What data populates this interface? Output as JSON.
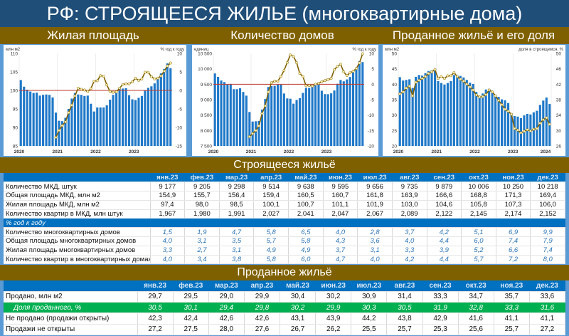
{
  "title": "РФ: СТРОЯЩЕЕСЯ ЖИЛЬЕ (многоквартирные дома)",
  "charts_band": [
    "Жилая площадь",
    "Количество домов",
    "Проданное жильё и его доля"
  ],
  "section1_title": "Строящееся жильё",
  "section2_title": "Проданное жильё",
  "months": [
    "янв.23",
    "фев.23",
    "мар.23",
    "апр.23",
    "май.23",
    "июн.23",
    "июл.23",
    "авг.23",
    "сен.23",
    "окт.23",
    "ноя.23",
    "дек.23"
  ],
  "table1": {
    "rows": [
      {
        "label": "Количество МКД, штук",
        "values": [
          "9 177",
          "9 205",
          "9 298",
          "9 514",
          "9 638",
          "9 595",
          "9 656",
          "9 735",
          "9 879",
          "10 006",
          "10 250",
          "10 218"
        ]
      },
      {
        "label": "Общая площадь МКД, млн м2",
        "values": [
          "154,9",
          "155,7",
          "156,4",
          "159,4",
          "160,5",
          "160,7",
          "161,8",
          "163,9",
          "166,6",
          "168,8",
          "171,3",
          "169,4"
        ]
      },
      {
        "label": "Жилая площадь МКД, млн м2",
        "values": [
          "97,4",
          "98,0",
          "98,5",
          "100,1",
          "100,7",
          "101,1",
          "101,9",
          "103,0",
          "104,6",
          "105,8",
          "107,3",
          "106,0"
        ]
      },
      {
        "label": "Количество квартир в МКД, млн штук",
        "values": [
          "1,967",
          "1,980",
          "1,991",
          "2,027",
          "2,041",
          "2,047",
          "2,067",
          "2,089",
          "2,122",
          "2,145",
          "2,174",
          "2,152"
        ]
      }
    ],
    "subheader": "% год к году",
    "pct_rows": [
      {
        "label": "Количество многоквартирных домов",
        "values": [
          "1,5",
          "1,9",
          "4,7",
          "5,8",
          "6,5",
          "4,0",
          "2,8",
          "3,7",
          "4,2",
          "5,1",
          "6,9",
          "9,9"
        ]
      },
      {
        "label": "Общая площадь многоквартирных домов",
        "values": [
          "4,0",
          "3,1",
          "3,5",
          "5,7",
          "5,8",
          "4,3",
          "3,6",
          "4,0",
          "4,4",
          "6,0",
          "7,4",
          "7,9"
        ]
      },
      {
        "label": "Жилая площадь многоквартирных домов",
        "values": [
          "3,3",
          "2,7",
          "3,1",
          "4,9",
          "4,9",
          "3,7",
          "3,1",
          "3,3",
          "3,9",
          "5,2",
          "6,6",
          "7,4"
        ]
      },
      {
        "label": "Количество квартир в многоквартирных домах",
        "values": [
          "4,0",
          "3,4",
          "3,8",
          "5,8",
          "6,0",
          "4,7",
          "4,0",
          "4,2",
          "4,4",
          "5,7",
          "7,2",
          "8,0"
        ]
      }
    ]
  },
  "table2": {
    "rows": [
      {
        "label": "Продано, млн м2",
        "values": [
          "29,7",
          "29,5",
          "29,0",
          "29,9",
          "30,4",
          "30,2",
          "30,9",
          "31,4",
          "33,3",
          "34,7",
          "35,7",
          "33,6"
        ],
        "style": ""
      },
      {
        "label": "Доля проданного, %",
        "values": [
          "30,5",
          "30,1",
          "29,4",
          "29,8",
          "30,2",
          "29,9",
          "30,3",
          "30,5",
          "31,9",
          "32,8",
          "33,3",
          "31,6"
        ],
        "style": "g"
      },
      {
        "label": "Не продано (продажи открыты)",
        "values": [
          "42,3",
          "42,4",
          "42,6",
          "42,6",
          "43,1",
          "43,9",
          "44,2",
          "43,8",
          "42,9",
          "41,6",
          "41,1",
          "41,1"
        ],
        "style": ""
      },
      {
        "label": "Продажи не открыты",
        "values": [
          "27,2",
          "27,5",
          "28,0",
          "27,6",
          "26,7",
          "26,2",
          "25,5",
          "25,7",
          "25,3",
          "25,6",
          "25,7",
          "27,2"
        ],
        "style": ""
      }
    ]
  },
  "colors": {
    "bar": "#1F78C8",
    "line": "#7F6000",
    "marker": "#FFF2B0",
    "ref": "#C0392B"
  },
  "chart_data": [
    {
      "type": "bar+line",
      "title": "Жилая площадь",
      "ylabel": "млн м2",
      "y2label": "% год к году",
      "ylim": [
        85,
        110
      ],
      "yticks": [
        85,
        90,
        95,
        100,
        105,
        110
      ],
      "y2lim": [
        -15,
        10
      ],
      "y2ticks": [
        -15,
        -10,
        -5,
        0,
        5,
        10
      ],
      "xlabels": [
        "2020",
        "2021",
        "2022",
        "2023"
      ],
      "ref_y2": 0,
      "bars": [
        102.8,
        101,
        100.2,
        99.7,
        99.3,
        99.4,
        98.6,
        98.8,
        98.9,
        98.8,
        98.1,
        94,
        91.8,
        91.7,
        92.6,
        95,
        97.8,
        99.3,
        98.9,
        98.8,
        98.5,
        98.6,
        96.4,
        94.3,
        95.4,
        95.4,
        95.4,
        96,
        97.5,
        98.8,
        99.6,
        100.7,
        100.5,
        100.6,
        98.7,
        97.6,
        97.4,
        98.0,
        98.5,
        100.1,
        100.7,
        101.1,
        101.9,
        103.0,
        104.6,
        105.8,
        107.3,
        106.0
      ],
      "line_start": 11,
      "line": [
        -12.7,
        -10.8,
        -9.5,
        -8.5,
        -6,
        -4,
        -1.5,
        0.6,
        0.3,
        0.1,
        -0.3,
        0.5,
        2.5,
        2.6,
        4,
        3.8,
        1.5,
        -0.3,
        -0.5,
        -0.4,
        0.6,
        1.6,
        1.8,
        1.8,
        2.3,
        3.3,
        2.7,
        3.1,
        4.9,
        4.9,
        3.7,
        3.1,
        3.3,
        3.9,
        5.2,
        6.6,
        7.4
      ]
    },
    {
      "type": "bar+line",
      "title": "Количество домов",
      "ylabel": "единиц",
      "y2label": "% год к году",
      "ylim": [
        7500,
        10500
      ],
      "yticks": [
        7500,
        8000,
        8500,
        9000,
        9500,
        10000,
        10500
      ],
      "ytick_labels": [
        "7 500",
        "8 000",
        "8 500",
        "9 000",
        "9 500",
        "10 000",
        "10 500"
      ],
      "y2lim": [
        -20,
        10
      ],
      "y2ticks": [
        -20,
        -15,
        -10,
        -5,
        0,
        5,
        10
      ],
      "xlabels": [
        "2020",
        "2021",
        "2022",
        "2023"
      ],
      "ref_y2": 0,
      "bars": [
        9850,
        9740,
        9620,
        9570,
        9490,
        9510,
        9340,
        9340,
        9370,
        9250,
        9130,
        8600,
        8290,
        8300,
        8310,
        8680,
        9020,
        9410,
        9440,
        9450,
        9490,
        9490,
        9200,
        9040,
        9030,
        8870,
        8990,
        9050,
        9220,
        9380,
        9380,
        9480,
        9530,
        9560,
        9290,
        9180,
        9177,
        9205,
        9298,
        9514,
        9638,
        9595,
        9656,
        9735,
        9879,
        10006,
        10250,
        10218
      ],
      "line_start": 11,
      "line": [
        -17,
        -16,
        -15,
        -13.5,
        -9.5,
        -7,
        -2.5,
        0.5,
        1,
        1,
        2.5,
        4.5,
        7,
        9.5,
        9,
        7,
        3.5,
        2.5,
        -0.5,
        -0.4,
        -0.6,
        0,
        0.3,
        0.8,
        1.2,
        1.5,
        1.9,
        4.7,
        5.8,
        6.5,
        4.0,
        2.8,
        3.7,
        4.2,
        5.1,
        6.9,
        9.9
      ]
    },
    {
      "type": "bar+line",
      "title": "Проданное жильё и его доля",
      "ylabel": "млн м2",
      "y2label": "доля в строящемся, %",
      "ylim": [
        20,
        50
      ],
      "yticks": [
        20,
        25,
        30,
        35,
        40,
        45,
        50
      ],
      "y2lim": [
        26,
        50
      ],
      "y2ticks": [
        26,
        30,
        34,
        38,
        42,
        46,
        50
      ],
      "xlabels": [
        "2020",
        "2021",
        "2022",
        "2023",
        "2024"
      ],
      "bars": [
        42.3,
        41.2,
        41.4,
        41.6,
        38.8,
        42.4,
        43,
        42.8,
        43.6,
        44.3,
        44.5,
        44.9,
        41,
        40.4,
        39.9,
        40.4,
        41,
        43,
        42.9,
        42.7,
        42.2,
        41.4,
        40.5,
        40.1,
        37.5,
        36,
        37,
        38.3,
        38.5,
        37.4,
        36.6,
        35.9,
        35.1,
        34.8,
        33.9,
        30.6,
        29.7,
        29.5,
        29.0,
        29.9,
        30.4,
        30.2,
        30.9,
        31.4,
        33.3,
        34.7,
        35.7,
        33.6
      ],
      "line_start": 0,
      "line": [
        39.5,
        40,
        41,
        41.5,
        39,
        42.5,
        43,
        43.5,
        44,
        44.8,
        45.2,
        45.8,
        43.5,
        44,
        43.5,
        44.2,
        44.2,
        45,
        44,
        43.3,
        42.8,
        42,
        41.3,
        40.5,
        39.2,
        38.7,
        38.8,
        39.3,
        40.5,
        40,
        39,
        37.8,
        36.7,
        35.5,
        35,
        34.2,
        30.5,
        30.1,
        29.4,
        29.8,
        30.2,
        29.9,
        30.3,
        30.5,
        31.9,
        32.8,
        33.3,
        31.6
      ]
    }
  ]
}
